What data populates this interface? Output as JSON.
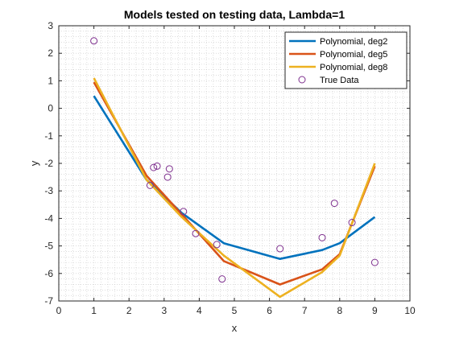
{
  "chart_data": {
    "type": "line",
    "title": "Models tested on testing data, Lambda=1",
    "xlabel": "x",
    "ylabel": "y",
    "xlim": [
      0,
      10
    ],
    "ylim": [
      -7,
      3
    ],
    "xticks": [
      "0",
      "1",
      "2",
      "3",
      "4",
      "5",
      "6",
      "7",
      "8",
      "9",
      "10"
    ],
    "yticks": [
      "3",
      "2",
      "1",
      "0",
      "-1",
      "-2",
      "-3",
      "-4",
      "-5",
      "-6",
      "-7"
    ],
    "grid": "minor-dotted",
    "legend_position": "top-right",
    "series": [
      {
        "name": "Polynomial, deg2",
        "kind": "line",
        "color": "#0072BD",
        "x": [
          1,
          2.5,
          3.5,
          4.7,
          6.3,
          7.5,
          8,
          9
        ],
        "y": [
          0.45,
          -2.6,
          -3.8,
          -4.9,
          -5.47,
          -5.15,
          -4.9,
          -3.95
        ]
      },
      {
        "name": "Polynomial, deg5",
        "kind": "line",
        "color": "#D95319",
        "x": [
          1,
          2.5,
          3.5,
          4.7,
          6.3,
          7.5,
          8,
          9
        ],
        "y": [
          0.95,
          -2.45,
          -3.85,
          -5.55,
          -6.4,
          -5.85,
          -5.3,
          -2.1
        ]
      },
      {
        "name": "Polynomial, deg8",
        "kind": "line",
        "color": "#EDB120",
        "x": [
          1,
          2.5,
          3.5,
          4.7,
          6.3,
          7.5,
          8,
          9
        ],
        "y": [
          1.1,
          -2.6,
          -3.95,
          -5.35,
          -6.85,
          -5.95,
          -5.35,
          -2.0
        ]
      },
      {
        "name": "True Data",
        "kind": "scatter",
        "color": "#7E2F8E",
        "x": [
          1.0,
          2.6,
          2.7,
          2.8,
          3.1,
          3.15,
          3.55,
          3.9,
          4.5,
          4.65,
          6.3,
          7.5,
          7.85,
          8.35,
          9.0
        ],
        "y": [
          2.45,
          -2.8,
          -2.15,
          -2.1,
          -2.5,
          -2.2,
          -3.75,
          -4.55,
          -4.95,
          -6.2,
          -5.1,
          -4.7,
          -3.45,
          -4.15,
          -5.6
        ]
      }
    ]
  }
}
